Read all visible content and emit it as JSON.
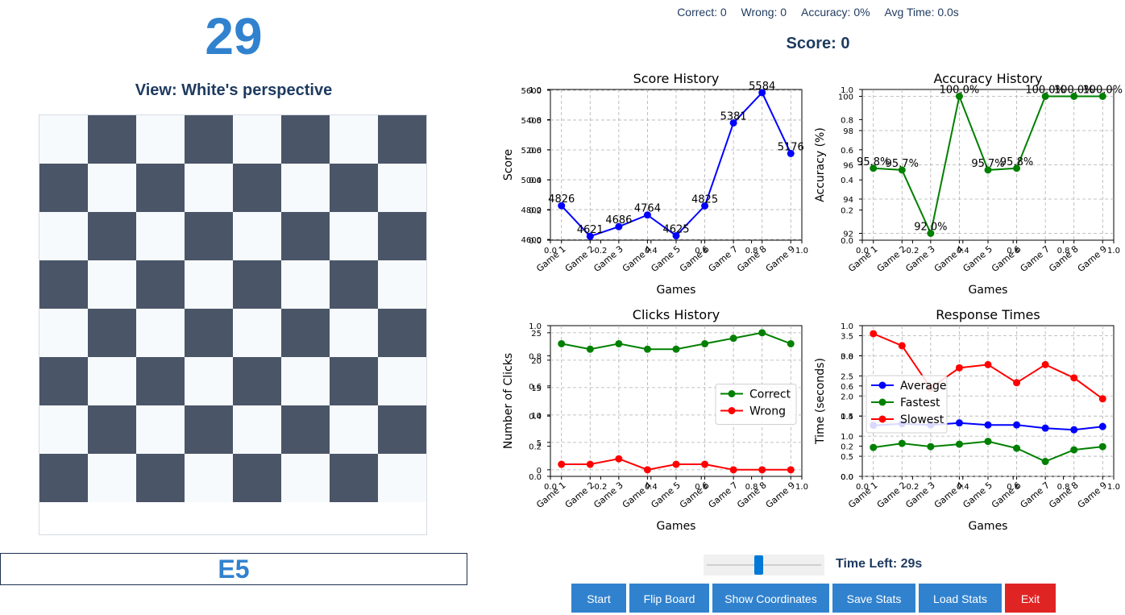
{
  "game": {
    "timer": "29",
    "view_label": "View: White's perspective",
    "target_square": "E5"
  },
  "stats": {
    "correct": "Correct: 0",
    "wrong": "Wrong: 0",
    "accuracy": "Accuracy: 0%",
    "avg_time": "Avg Time: 0.0s",
    "score": "Score: 0"
  },
  "controls": {
    "time_left": "Time Left: 29s",
    "time_slider_fraction": 0.45,
    "buttons": {
      "start": "Start",
      "flip": "Flip Board",
      "coords": "Show Coordinates",
      "save": "Save Stats",
      "load": "Load Stats",
      "exit": "Exit"
    }
  },
  "colors": {
    "accent": "#3182ce",
    "exit": "#e02424",
    "board_light": "#f7fafc",
    "board_dark": "#4a5568"
  },
  "chart_data": [
    {
      "type": "line",
      "title": "Score History",
      "xlabel": "Games",
      "ylabel": "Score",
      "categories": [
        "Game 1",
        "Game 2",
        "Game 3",
        "Game 4",
        "Game 5",
        "Game 6",
        "Game 7",
        "Game 8",
        "Game 9"
      ],
      "series": [
        {
          "values": [
            4826,
            4621,
            4686,
            4764,
            4625,
            4825,
            5381,
            5584,
            5176
          ],
          "color": "#0000ff"
        }
      ],
      "data_labels": [
        "4826",
        "4621",
        "4686",
        "4764",
        "4625",
        "4825",
        "5381",
        "5584",
        "5176"
      ],
      "yticks": [
        "4600",
        "4800",
        "5000",
        "5200",
        "5400",
        "5600"
      ],
      "ylim": [
        4595,
        5605
      ],
      "grid": true
    },
    {
      "type": "line",
      "title": "Accuracy History",
      "xlabel": "Games",
      "ylabel": "Accuracy (%)",
      "categories": [
        "Game 1",
        "Game 2",
        "Game 3",
        "Game 4",
        "Game 5",
        "Game 6",
        "Game 7",
        "Game 8",
        "Game 9"
      ],
      "series": [
        {
          "values": [
            95.8,
            95.7,
            92.0,
            100.0,
            95.7,
            95.8,
            100.0,
            100.0,
            100.0
          ],
          "color": "#008000"
        }
      ],
      "data_labels": [
        "95.8%",
        "95.7%",
        "92.0%",
        "100.0%",
        "95.7%",
        "95.8%",
        "100.0%",
        "100.0%",
        "100.0%"
      ],
      "yticks": [
        "92",
        "94",
        "96",
        "98",
        "100"
      ],
      "ylim": [
        91.6,
        100.4
      ],
      "grid": true
    },
    {
      "type": "line",
      "title": "Clicks History",
      "xlabel": "Games",
      "ylabel": "Number of Clicks",
      "categories": [
        "Game 1",
        "Game 2",
        "Game 3",
        "Game 4",
        "Game 5",
        "Game 6",
        "Game 7",
        "Game 8",
        "Game 9"
      ],
      "series": [
        {
          "name": "Correct",
          "values": [
            23,
            22,
            23,
            22,
            22,
            23,
            24,
            25,
            23
          ],
          "color": "#008000"
        },
        {
          "name": "Wrong",
          "values": [
            1,
            1,
            2,
            0,
            1,
            1,
            0,
            0,
            0
          ],
          "color": "#ff0000"
        }
      ],
      "yticks": [
        "0",
        "5",
        "10",
        "15",
        "20",
        "25"
      ],
      "ylim": [
        -1.2,
        26.3
      ],
      "legend": "center-right",
      "grid": true
    },
    {
      "type": "line",
      "title": "Response Times",
      "xlabel": "Games",
      "ylabel": "Time (seconds)",
      "categories": [
        "Game 1",
        "Game 2",
        "Game 3",
        "Game 4",
        "Game 5",
        "Game 6",
        "Game 7",
        "Game 8",
        "Game 9"
      ],
      "series": [
        {
          "name": "Average",
          "values": [
            1.27,
            1.31,
            1.28,
            1.33,
            1.28,
            1.28,
            1.2,
            1.16,
            1.24
          ],
          "color": "#0000ff"
        },
        {
          "name": "Fastest",
          "values": [
            0.72,
            0.82,
            0.74,
            0.8,
            0.87,
            0.7,
            0.37,
            0.66,
            0.74
          ],
          "color": "#008000"
        },
        {
          "name": "Slowest",
          "values": [
            3.55,
            3.25,
            2.2,
            2.7,
            2.78,
            2.33,
            2.78,
            2.45,
            1.93
          ],
          "color": "#ff0000"
        }
      ],
      "yticks": [
        "0.0",
        "0.5",
        "1.0",
        "1.5",
        "2.0",
        "2.5",
        "3.0",
        "3.5"
      ],
      "ylim": [
        0.0,
        3.75
      ],
      "legend": "center-left",
      "grid": true
    }
  ]
}
